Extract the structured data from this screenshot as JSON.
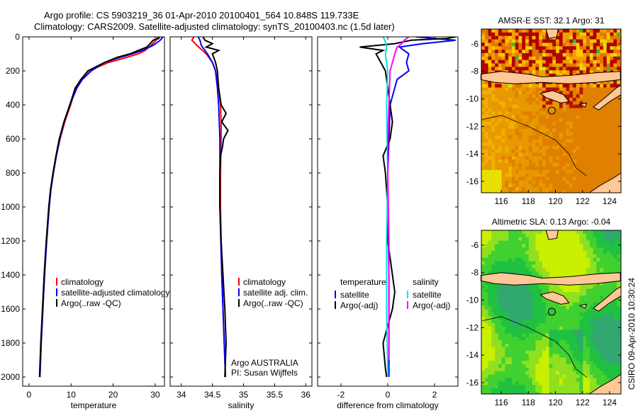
{
  "title_line1": "Argo profile: CS 5903219_36 01-Apr-2010 20100401_564 10.848S 119.733E",
  "title_line2": "Climatology: CARS2009. Satellite-adjusted climatology: synTS_20100403.nc (1.5d later)",
  "side_label": "CSIRO 09-Apr-2010 10:30:24",
  "colors": {
    "climatology": "#ff0000",
    "satellite": "#0000ff",
    "argo": "#000000",
    "sal_satellite": "#00e5e5",
    "sal_argo": "#ff00ff",
    "land": "#ffc896"
  },
  "chart_data": [
    {
      "type": "line",
      "id": "temp",
      "xlabel": "temperature",
      "xlim": [
        -1.5,
        32.2
      ],
      "ylim": [
        0,
        2054
      ],
      "xticks": [
        0,
        10,
        20,
        30
      ],
      "yticks": [
        0,
        200,
        400,
        600,
        800,
        1000,
        1200,
        1400,
        1600,
        1800,
        2000
      ],
      "ytick_labels": true,
      "legend": {
        "placement": "bottom-right",
        "entries": [
          "climatology",
          "satellite-adjusted climatology",
          "Argo(..raw -QC)"
        ]
      },
      "series": [
        {
          "name": "climatology",
          "color": "#ff0000",
          "depth": [
            0,
            20,
            50,
            80,
            100,
            130,
            150,
            200,
            250,
            300,
            400,
            500,
            600,
            700,
            800,
            900,
            1000,
            1200,
            1400,
            1600,
            1800,
            2000
          ],
          "values": [
            30.6,
            30.2,
            29,
            27.6,
            26,
            22,
            19,
            14.2,
            12.3,
            11.1,
            9.9,
            8.5,
            7.4,
            6.5,
            5.8,
            5.2,
            4.8,
            4.2,
            3.7,
            3.3,
            2.9,
            2.6
          ]
        },
        {
          "name": "satellite-adjusted climatology",
          "color": "#0000ff",
          "depth": [
            0,
            20,
            50,
            80,
            100,
            130,
            150,
            200,
            250,
            300,
            400,
            500,
            600,
            700,
            800,
            900,
            1000,
            1200,
            1400,
            1600,
            1800,
            2000
          ],
          "values": [
            31.8,
            31.2,
            29.5,
            27,
            24.5,
            20.5,
            18,
            14.8,
            12.7,
            11.4,
            9.7,
            8.4,
            7.3,
            6.5,
            5.8,
            5.2,
            4.8,
            4.2,
            3.7,
            3.3,
            2.9,
            2.6
          ]
        },
        {
          "name": "Argo(..raw -QC)",
          "color": "#000000",
          "depth": [
            0,
            10,
            20,
            40,
            60,
            80,
            100,
            120,
            150,
            200,
            250,
            300,
            400,
            500,
            600,
            700,
            800,
            900,
            1000,
            1200,
            1400,
            1600,
            1800,
            2000
          ],
          "values": [
            31,
            30.8,
            29.5,
            28.8,
            28,
            26,
            24,
            21,
            18,
            14,
            12.4,
            11,
            9.7,
            8.3,
            7.2,
            6.4,
            5.7,
            5.1,
            4.7,
            4.1,
            3.6,
            3.2,
            2.8,
            2.5
          ]
        }
      ]
    },
    {
      "type": "line",
      "id": "sal",
      "xlabel": "salinity",
      "xlim": [
        33.82,
        36.1
      ],
      "ylim": [
        0,
        2054
      ],
      "xticks": [
        34,
        34.5,
        35,
        35.5,
        36
      ],
      "yticks": [
        0,
        200,
        400,
        600,
        800,
        1000,
        1200,
        1400,
        1600,
        1800,
        2000
      ],
      "ytick_labels": false,
      "legend": {
        "placement": "bottom-right",
        "entries": [
          "climatology",
          "satellite adj. clim.",
          "Argo(..raw -QC)"
        ]
      },
      "annotation": [
        "Argo AUSTRALIA",
        "PI: Susan Wijffels"
      ],
      "series": [
        {
          "name": "climatology",
          "color": "#ff0000",
          "depth": [
            0,
            20,
            50,
            100,
            150,
            200,
            300,
            400,
            500,
            600,
            800,
            1000,
            1400,
            1800,
            2000
          ],
          "values": [
            34.2,
            34.17,
            34.25,
            34.4,
            34.5,
            34.55,
            34.6,
            34.63,
            34.64,
            34.64,
            34.63,
            34.63,
            34.65,
            34.69,
            34.71
          ]
        },
        {
          "name": "satellite adj. clim.",
          "color": "#0000ff",
          "depth": [
            0,
            20,
            50,
            100,
            150,
            200,
            300,
            400,
            500,
            600,
            800,
            1000,
            1400,
            1800,
            2000
          ],
          "values": [
            34.27,
            34.3,
            34.32,
            34.42,
            34.5,
            34.55,
            34.58,
            34.6,
            34.61,
            34.62,
            34.62,
            34.62,
            34.65,
            34.69,
            34.71
          ]
        },
        {
          "name": "Argo(..raw -QC)",
          "color": "#000000",
          "depth": [
            0,
            20,
            40,
            60,
            80,
            100,
            150,
            200,
            300,
            400,
            450,
            500,
            550,
            600,
            650,
            700,
            800,
            1000,
            1200,
            1400,
            1600,
            1800,
            2000
          ],
          "values": [
            34.35,
            34.38,
            34.5,
            34.4,
            34.6,
            34.5,
            34.55,
            34.58,
            34.6,
            34.64,
            34.72,
            34.65,
            34.75,
            34.68,
            34.66,
            34.63,
            34.62,
            34.62,
            34.64,
            34.67,
            34.7,
            34.72,
            34.7
          ]
        }
      ]
    },
    {
      "type": "line",
      "id": "diff",
      "xlabel": "difference from climatology",
      "xlim": [
        -3,
        3
      ],
      "ylim": [
        0,
        2054
      ],
      "xticks": [
        -2,
        0,
        2
      ],
      "yticks": [
        0,
        200,
        400,
        600,
        800,
        1000,
        1200,
        1400,
        1600,
        1800,
        2000
      ],
      "ytick_labels": false,
      "legend": {
        "placement": "bottom",
        "temperature_header": "temperature",
        "salinity_header": "salinity",
        "entries": [
          "satellite",
          "Argo(-adj)",
          "satellite",
          "Argo(-adj)"
        ]
      },
      "series": [
        {
          "name": "temperature satellite",
          "color": "#0000ff",
          "depth": [
            0,
            20,
            40,
            60,
            80,
            100,
            150,
            200,
            250,
            300,
            400,
            600,
            800,
            1000,
            1400,
            1800,
            2000
          ],
          "values": [
            1.2,
            2.9,
            1.5,
            0.5,
            0.7,
            0.9,
            0.8,
            0.9,
            0.4,
            0.3,
            0.1,
            0.05,
            0,
            0,
            0.05,
            0.05,
            0.05
          ]
        },
        {
          "name": "temperature Argo(-adj)",
          "color": "#000000",
          "depth": [
            0,
            10,
            20,
            40,
            60,
            80,
            100,
            150,
            200,
            300,
            400,
            500,
            600,
            700,
            800,
            1000,
            1200,
            1400,
            1500,
            1600,
            1800,
            1950,
            2000
          ],
          "values": [
            2.9,
            2.5,
            1,
            0.3,
            -1.2,
            -0.2,
            -0.5,
            -0.3,
            -0.1,
            0,
            0.1,
            0.2,
            0.1,
            -0.2,
            -0.1,
            0,
            0,
            0.2,
            0.3,
            0.2,
            -0.2,
            -0.1,
            -0.05
          ]
        },
        {
          "name": "salinity satellite",
          "color": "#00e5e5",
          "depth": [
            0,
            30,
            60,
            100,
            200,
            400,
            800,
            1200,
            1600,
            2000
          ],
          "values": [
            -0.2,
            -0.1,
            -0.05,
            -0.1,
            0,
            -0.05,
            0,
            -0.05,
            -0.05,
            0
          ]
        },
        {
          "name": "salinity Argo(-adj)",
          "color": "#ff00ff",
          "depth": [
            0,
            20,
            40,
            60,
            100,
            200,
            400,
            600,
            800,
            1200,
            1600,
            1900
          ],
          "values": [
            0.9,
            0.7,
            0.6,
            0.4,
            0.3,
            0.1,
            0.05,
            0,
            0,
            0.05,
            0.05,
            0.05
          ]
        }
      ]
    },
    {
      "type": "heatmap",
      "id": "sst",
      "title": "AMSR-E SST: 32.1 Argo: 31",
      "xlim": [
        114.53,
        124.84
      ],
      "ylim": [
        -16.83,
        -4.92
      ],
      "xticks": [
        116,
        118,
        120,
        122,
        124
      ],
      "yticks": [
        -6,
        -8,
        -10,
        -12,
        -14,
        -16
      ],
      "argo_position": [
        119.733,
        -10.848
      ]
    },
    {
      "type": "heatmap",
      "id": "sla",
      "title": "Altimetric SLA: 0.13 Argo: -0.04",
      "xlim": [
        114.53,
        124.84
      ],
      "ylim": [
        -16.83,
        -4.92
      ],
      "xticks": [
        116,
        118,
        120,
        122,
        124
      ],
      "yticks": [
        -6,
        -8,
        -10,
        -12,
        -14,
        -16
      ],
      "argo_position": [
        119.733,
        -10.848
      ]
    }
  ]
}
